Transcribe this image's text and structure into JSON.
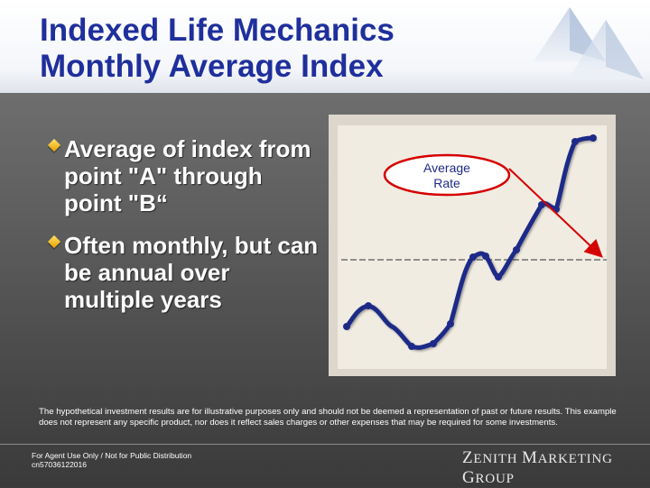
{
  "slide": {
    "title_line1": "Indexed Life Mechanics",
    "title_line2": "Monthly Average Index"
  },
  "bullets": [
    {
      "text": "Average of index from point \"A\" through point \"B“"
    },
    {
      "text": "Often monthly, but can be annual over multiple years"
    }
  ],
  "chart": {
    "callout_line1": "Average",
    "callout_line2": "Rate",
    "colors": {
      "line": "#1f2a88",
      "callout": "#d40000",
      "average_line": "#555555"
    }
  },
  "disclaimer": "The hypothetical investment results are for illustrative purposes only and should not be deemed a representation of past or future results. This example does not represent any specific product, nor does it reflect sales charges or other expenses that may be required for some investments.",
  "footer": {
    "line1": "For Agent Use Only / Not for Public Distribution",
    "line2": "cn57036122016",
    "brand_z": "Z",
    "brand_enith": "ENITH ",
    "brand_m": "M",
    "brand_arketing": "ARKETING ",
    "brand_g": "G",
    "brand_roup": "ROUP"
  }
}
